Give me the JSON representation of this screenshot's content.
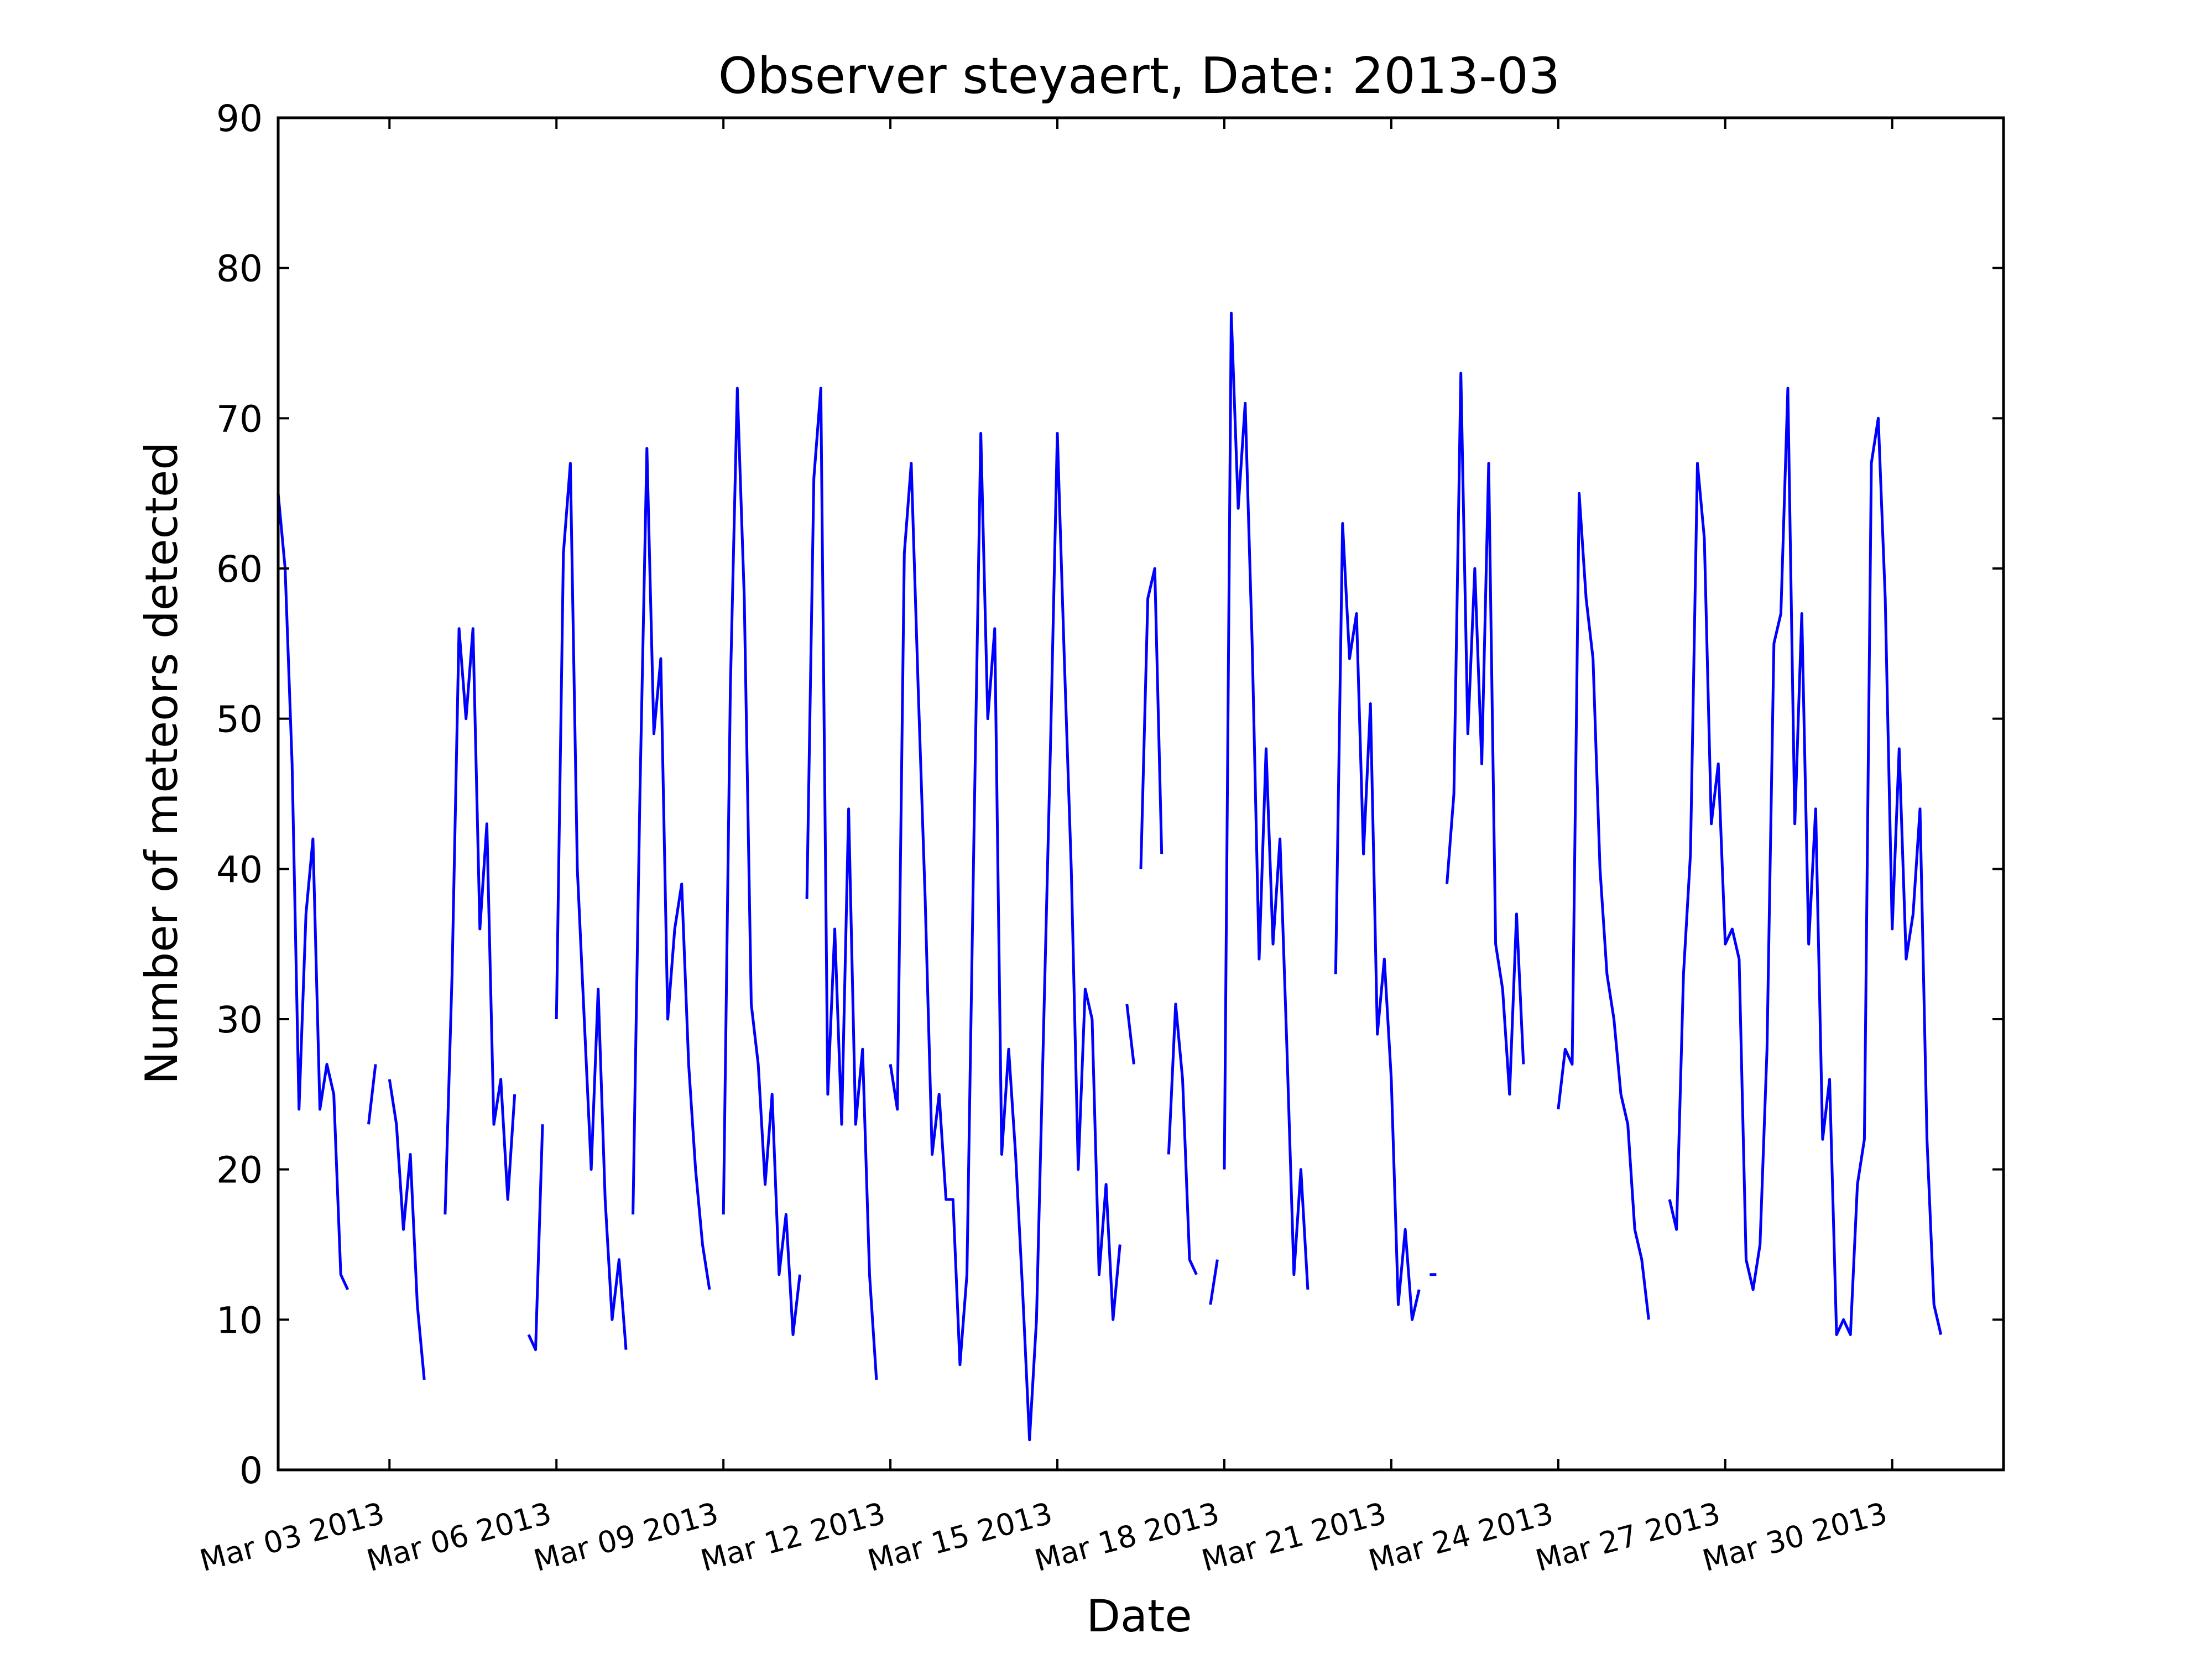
{
  "chart_data": {
    "type": "line",
    "title": "Observer steyaert, Date: 2013-03",
    "xlabel": "Date",
    "ylabel": "Number of meteors detected",
    "xlim": [
      "2013-03-01",
      "2013-04-01"
    ],
    "ylim": [
      0,
      90
    ],
    "yticks": [
      0,
      10,
      20,
      30,
      40,
      50,
      60,
      70,
      80,
      90
    ],
    "xticks": [
      {
        "date": "2013-03-03",
        "label": "Mar 03 2013"
      },
      {
        "date": "2013-03-06",
        "label": "Mar 06 2013"
      },
      {
        "date": "2013-03-09",
        "label": "Mar 09 2013"
      },
      {
        "date": "2013-03-12",
        "label": "Mar 12 2013"
      },
      {
        "date": "2013-03-15",
        "label": "Mar 15 2013"
      },
      {
        "date": "2013-03-18",
        "label": "Mar 18 2013"
      },
      {
        "date": "2013-03-21",
        "label": "Mar 21 2013"
      },
      {
        "date": "2013-03-24",
        "label": "Mar 24 2013"
      },
      {
        "date": "2013-03-27",
        "label": "Mar 27 2013"
      },
      {
        "date": "2013-03-30",
        "label": "Mar 30 2013"
      }
    ],
    "grid": false,
    "line_color": "#0000ff",
    "series": [
      {
        "segments": [
          [
            [
              "2013-03-01 00:00",
              65
            ],
            [
              "2013-03-01 03:00",
              60
            ],
            [
              "2013-03-01 06:00",
              47
            ],
            [
              "2013-03-01 09:00",
              24
            ],
            [
              "2013-03-01 12:00",
              37
            ],
            [
              "2013-03-01 15:00",
              42
            ],
            [
              "2013-03-01 18:00",
              24
            ],
            [
              "2013-03-01 21:00",
              27
            ],
            [
              "2013-03-02 00:00",
              25
            ],
            [
              "2013-03-02 03:00",
              13
            ],
            [
              "2013-03-02 06:00",
              12
            ]
          ],
          [
            [
              "2013-03-02 15:00",
              23
            ],
            [
              "2013-03-02 18:00",
              27
            ]
          ],
          [
            [
              "2013-03-03 00:00",
              26
            ],
            [
              "2013-03-03 03:00",
              23
            ],
            [
              "2013-03-03 06:00",
              16
            ],
            [
              "2013-03-03 09:00",
              21
            ],
            [
              "2013-03-03 12:00",
              11
            ],
            [
              "2013-03-03 15:00",
              6
            ]
          ],
          [
            [
              "2013-03-04 00:00",
              17
            ],
            [
              "2013-03-04 03:00",
              33
            ],
            [
              "2013-03-04 06:00",
              56
            ],
            [
              "2013-03-04 09:00",
              50
            ],
            [
              "2013-03-04 12:00",
              56
            ],
            [
              "2013-03-04 15:00",
              36
            ],
            [
              "2013-03-04 18:00",
              43
            ],
            [
              "2013-03-04 21:00",
              23
            ],
            [
              "2013-03-05 00:00",
              26
            ],
            [
              "2013-03-05 03:00",
              18
            ],
            [
              "2013-03-05 06:00",
              25
            ]
          ],
          [
            [
              "2013-03-05 12:00",
              9
            ],
            [
              "2013-03-05 15:00",
              8
            ],
            [
              "2013-03-05 18:00",
              23
            ]
          ],
          [
            [
              "2013-03-06 00:00",
              30
            ],
            [
              "2013-03-06 03:00",
              61
            ],
            [
              "2013-03-06 06:00",
              67
            ],
            [
              "2013-03-06 09:00",
              40
            ],
            [
              "2013-03-06 12:00",
              30
            ],
            [
              "2013-03-06 15:00",
              20
            ],
            [
              "2013-03-06 18:00",
              32
            ],
            [
              "2013-03-06 21:00",
              18
            ],
            [
              "2013-03-07 00:00",
              10
            ],
            [
              "2013-03-07 03:00",
              14
            ],
            [
              "2013-03-07 06:00",
              8
            ]
          ],
          [
            [
              "2013-03-07 09:00",
              17
            ],
            [
              "2013-03-07 12:00",
              45
            ],
            [
              "2013-03-07 15:00",
              68
            ],
            [
              "2013-03-07 18:00",
              49
            ],
            [
              "2013-03-07 21:00",
              54
            ],
            [
              "2013-03-08 00:00",
              30
            ],
            [
              "2013-03-08 03:00",
              36
            ],
            [
              "2013-03-08 06:00",
              39
            ],
            [
              "2013-03-08 09:00",
              27
            ],
            [
              "2013-03-08 12:00",
              20
            ],
            [
              "2013-03-08 15:00",
              15
            ],
            [
              "2013-03-08 18:00",
              12
            ]
          ],
          [
            [
              "2013-03-09 00:00",
              17
            ],
            [
              "2013-03-09 03:00",
              52
            ],
            [
              "2013-03-09 06:00",
              72
            ],
            [
              "2013-03-09 09:00",
              58
            ],
            [
              "2013-03-09 12:00",
              31
            ],
            [
              "2013-03-09 15:00",
              27
            ],
            [
              "2013-03-09 18:00",
              19
            ],
            [
              "2013-03-09 21:00",
              25
            ],
            [
              "2013-03-10 00:00",
              13
            ],
            [
              "2013-03-10 03:00",
              17
            ],
            [
              "2013-03-10 06:00",
              9
            ],
            [
              "2013-03-10 09:00",
              13
            ]
          ],
          [
            [
              "2013-03-10 12:00",
              38
            ],
            [
              "2013-03-10 15:00",
              66
            ],
            [
              "2013-03-10 18:00",
              72
            ],
            [
              "2013-03-10 21:00",
              25
            ],
            [
              "2013-03-11 00:00",
              36
            ],
            [
              "2013-03-11 03:00",
              23
            ],
            [
              "2013-03-11 06:00",
              44
            ],
            [
              "2013-03-11 09:00",
              23
            ],
            [
              "2013-03-11 12:00",
              28
            ],
            [
              "2013-03-11 15:00",
              13
            ],
            [
              "2013-03-11 18:00",
              6
            ]
          ],
          [
            [
              "2013-03-12 00:00",
              27
            ],
            [
              "2013-03-12 03:00",
              24
            ],
            [
              "2013-03-12 06:00",
              61
            ],
            [
              "2013-03-12 09:00",
              67
            ],
            [
              "2013-03-12 12:00",
              52
            ],
            [
              "2013-03-12 15:00",
              38
            ],
            [
              "2013-03-12 18:00",
              21
            ],
            [
              "2013-03-12 21:00",
              25
            ],
            [
              "2013-03-13 00:00",
              18
            ],
            [
              "2013-03-13 03:00",
              18
            ],
            [
              "2013-03-13 06:00",
              7
            ],
            [
              "2013-03-13 09:00",
              13
            ],
            [
              "2013-03-13 12:00",
              42
            ],
            [
              "2013-03-13 15:00",
              69
            ],
            [
              "2013-03-13 18:00",
              50
            ],
            [
              "2013-03-13 21:00",
              56
            ],
            [
              "2013-03-14 00:00",
              21
            ],
            [
              "2013-03-14 03:00",
              28
            ],
            [
              "2013-03-14 06:00",
              21
            ],
            [
              "2013-03-14 09:00",
              12
            ],
            [
              "2013-03-14 12:00",
              2
            ],
            [
              "2013-03-14 15:00",
              10
            ],
            [
              "2013-03-14 18:00",
              29
            ],
            [
              "2013-03-14 21:00",
              48
            ],
            [
              "2013-03-15 00:00",
              69
            ],
            [
              "2013-03-15 03:00",
              54
            ],
            [
              "2013-03-15 06:00",
              40
            ],
            [
              "2013-03-15 09:00",
              20
            ],
            [
              "2013-03-15 12:00",
              32
            ],
            [
              "2013-03-15 15:00",
              30
            ],
            [
              "2013-03-15 18:00",
              13
            ],
            [
              "2013-03-15 21:00",
              19
            ],
            [
              "2013-03-16 00:00",
              10
            ],
            [
              "2013-03-16 03:00",
              15
            ]
          ],
          [
            [
              "2013-03-16 06:00",
              31
            ],
            [
              "2013-03-16 09:00",
              27
            ]
          ],
          [
            [
              "2013-03-16 12:00",
              40
            ],
            [
              "2013-03-16 15:00",
              58
            ],
            [
              "2013-03-16 18:00",
              60
            ],
            [
              "2013-03-16 21:00",
              41
            ]
          ],
          [
            [
              "2013-03-17 00:00",
              21
            ],
            [
              "2013-03-17 03:00",
              31
            ],
            [
              "2013-03-17 06:00",
              26
            ],
            [
              "2013-03-17 09:00",
              14
            ],
            [
              "2013-03-17 12:00",
              13
            ]
          ],
          [
            [
              "2013-03-17 18:00",
              11
            ],
            [
              "2013-03-17 21:00",
              14
            ]
          ],
          [
            [
              "2013-03-18 00:00",
              20
            ],
            [
              "2013-03-18 03:00",
              77
            ],
            [
              "2013-03-18 06:00",
              64
            ],
            [
              "2013-03-18 09:00",
              71
            ],
            [
              "2013-03-18 12:00",
              55
            ],
            [
              "2013-03-18 15:00",
              34
            ],
            [
              "2013-03-18 18:00",
              48
            ],
            [
              "2013-03-18 21:00",
              35
            ],
            [
              "2013-03-19 00:00",
              42
            ],
            [
              "2013-03-19 03:00",
              28
            ],
            [
              "2013-03-19 06:00",
              13
            ],
            [
              "2013-03-19 09:00",
              20
            ],
            [
              "2013-03-19 12:00",
              12
            ]
          ],
          [
            [
              "2013-03-20 00:00",
              33
            ],
            [
              "2013-03-20 03:00",
              63
            ],
            [
              "2013-03-20 06:00",
              54
            ],
            [
              "2013-03-20 09:00",
              57
            ],
            [
              "2013-03-20 12:00",
              41
            ],
            [
              "2013-03-20 15:00",
              51
            ],
            [
              "2013-03-20 18:00",
              29
            ],
            [
              "2013-03-20 21:00",
              34
            ],
            [
              "2013-03-21 00:00",
              26
            ],
            [
              "2013-03-21 03:00",
              11
            ],
            [
              "2013-03-21 06:00",
              16
            ],
            [
              "2013-03-21 09:00",
              10
            ],
            [
              "2013-03-21 12:00",
              12
            ]
          ],
          [
            [
              "2013-03-21 18:00",
              13
            ]
          ],
          [
            [
              "2013-03-22 00:00",
              39
            ],
            [
              "2013-03-22 03:00",
              45
            ],
            [
              "2013-03-22 06:00",
              73
            ],
            [
              "2013-03-22 09:00",
              49
            ],
            [
              "2013-03-22 12:00",
              60
            ],
            [
              "2013-03-22 15:00",
              47
            ],
            [
              "2013-03-22 18:00",
              67
            ],
            [
              "2013-03-22 21:00",
              35
            ],
            [
              "2013-03-23 00:00",
              32
            ],
            [
              "2013-03-23 03:00",
              25
            ],
            [
              "2013-03-23 06:00",
              37
            ],
            [
              "2013-03-23 09:00",
              27
            ]
          ],
          [
            [
              "2013-03-24 00:00",
              24
            ],
            [
              "2013-03-24 03:00",
              28
            ],
            [
              "2013-03-24 06:00",
              27
            ],
            [
              "2013-03-24 09:00",
              65
            ],
            [
              "2013-03-24 12:00",
              58
            ],
            [
              "2013-03-24 15:00",
              54
            ],
            [
              "2013-03-24 18:00",
              40
            ],
            [
              "2013-03-24 21:00",
              33
            ],
            [
              "2013-03-25 00:00",
              30
            ],
            [
              "2013-03-25 03:00",
              25
            ],
            [
              "2013-03-25 06:00",
              23
            ],
            [
              "2013-03-25 09:00",
              16
            ],
            [
              "2013-03-25 12:00",
              14
            ],
            [
              "2013-03-25 15:00",
              10
            ]
          ],
          [
            [
              "2013-03-26 00:00",
              18
            ],
            [
              "2013-03-26 03:00",
              16
            ],
            [
              "2013-03-26 06:00",
              33
            ],
            [
              "2013-03-26 09:00",
              41
            ],
            [
              "2013-03-26 12:00",
              67
            ],
            [
              "2013-03-26 15:00",
              62
            ],
            [
              "2013-03-26 18:00",
              43
            ],
            [
              "2013-03-26 21:00",
              47
            ],
            [
              "2013-03-27 00:00",
              35
            ],
            [
              "2013-03-27 03:00",
              36
            ],
            [
              "2013-03-27 06:00",
              34
            ],
            [
              "2013-03-27 09:00",
              14
            ],
            [
              "2013-03-27 12:00",
              12
            ],
            [
              "2013-03-27 15:00",
              15
            ],
            [
              "2013-03-27 18:00",
              28
            ],
            [
              "2013-03-27 21:00",
              55
            ],
            [
              "2013-03-28 00:00",
              57
            ],
            [
              "2013-03-28 03:00",
              72
            ],
            [
              "2013-03-28 06:00",
              43
            ],
            [
              "2013-03-28 09:00",
              57
            ],
            [
              "2013-03-28 12:00",
              35
            ],
            [
              "2013-03-28 15:00",
              44
            ],
            [
              "2013-03-28 18:00",
              22
            ],
            [
              "2013-03-28 21:00",
              26
            ],
            [
              "2013-03-29 00:00",
              9
            ],
            [
              "2013-03-29 03:00",
              10
            ],
            [
              "2013-03-29 06:00",
              9
            ],
            [
              "2013-03-29 09:00",
              19
            ],
            [
              "2013-03-29 12:00",
              22
            ],
            [
              "2013-03-29 15:00",
              67
            ],
            [
              "2013-03-29 18:00",
              70
            ],
            [
              "2013-03-29 21:00",
              58
            ],
            [
              "2013-03-30 00:00",
              36
            ],
            [
              "2013-03-30 03:00",
              48
            ],
            [
              "2013-03-30 06:00",
              34
            ],
            [
              "2013-03-30 09:00",
              37
            ],
            [
              "2013-03-30 12:00",
              44
            ],
            [
              "2013-03-30 15:00",
              22
            ],
            [
              "2013-03-30 18:00",
              11
            ],
            [
              "2013-03-30 21:00",
              9
            ]
          ]
        ]
      }
    ]
  }
}
